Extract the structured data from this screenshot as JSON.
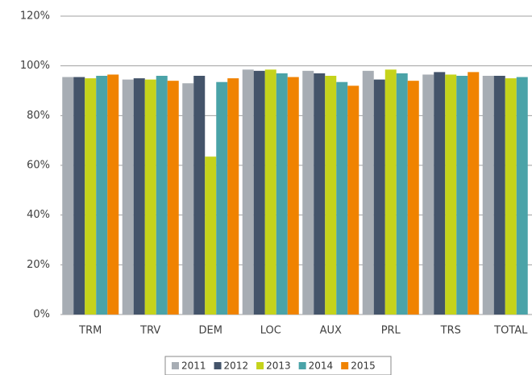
{
  "chart_data": {
    "type": "bar",
    "categories": [
      "TRM",
      "TRV",
      "DEM",
      "LOC",
      "AUX",
      "PRL",
      "TRS",
      "TOTAL"
    ],
    "series": [
      {
        "name": "2011",
        "color": "#a7adb4",
        "values": [
          95.5,
          94.5,
          93,
          98.5,
          98,
          98,
          96.5,
          96
        ]
      },
      {
        "name": "2012",
        "color": "#44546a",
        "values": [
          95.5,
          95,
          96,
          98,
          97,
          94.5,
          97.5,
          96
        ]
      },
      {
        "name": "2013",
        "color": "#c5d31b",
        "values": [
          95,
          94.5,
          63.5,
          98.5,
          96,
          98.5,
          96.5,
          95
        ]
      },
      {
        "name": "2014",
        "color": "#4aa3a8",
        "values": [
          96,
          96,
          93.5,
          97,
          93.5,
          97,
          96,
          95.5
        ]
      },
      {
        "name": "2015",
        "color": "#f08300",
        "values": [
          96.5,
          94,
          95,
          95.5,
          92,
          94,
          97.5,
          null
        ]
      }
    ],
    "ylim": [
      0,
      120
    ],
    "yticks": [
      {
        "value": 0,
        "label": "0%"
      },
      {
        "value": 20,
        "label": "20%"
      },
      {
        "value": 40,
        "label": "40%"
      },
      {
        "value": 60,
        "label": "60%"
      },
      {
        "value": 80,
        "label": "80%"
      },
      {
        "value": 100,
        "label": "100%"
      },
      {
        "value": 120,
        "label": "120%"
      }
    ],
    "grid": true,
    "legend": "bottom"
  }
}
